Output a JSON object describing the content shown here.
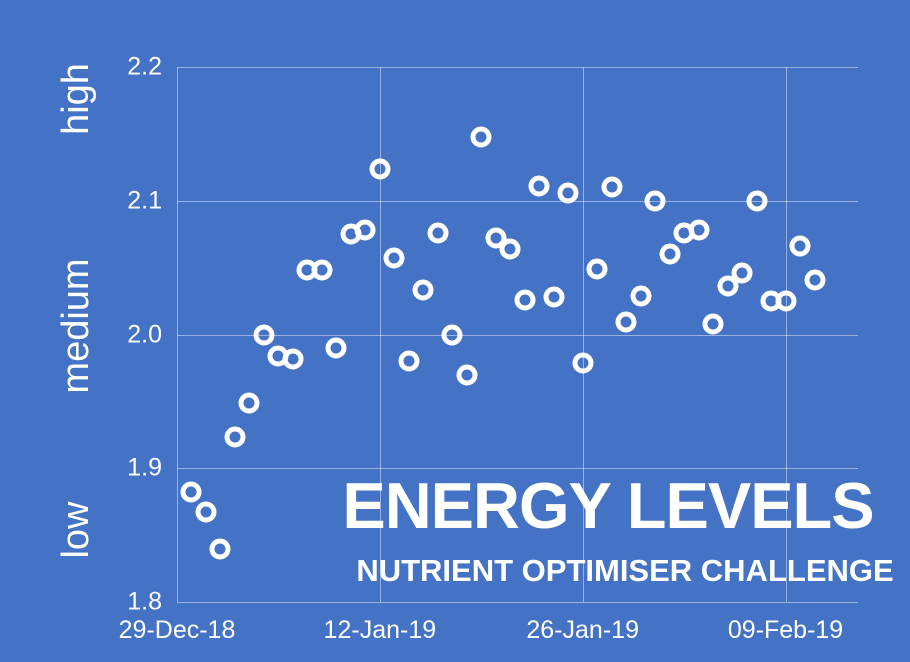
{
  "page": {
    "background_color": "#4472C4",
    "text_color": "#FFFFFF",
    "gridline_color": "rgba(255,255,255,0.45)"
  },
  "chart_data": {
    "type": "scatter",
    "title": "ENERGY LEVELS",
    "subtitle": "NUTRIENT OPTIMISER CHALLENGE",
    "legend_position": "none",
    "grid": true,
    "marker": {
      "icon": "ring-icon",
      "color": "#FFFFFF"
    },
    "ylim": [
      1.8,
      2.2
    ],
    "y_ticks": [
      {
        "label": "2.2",
        "value": 2.2
      },
      {
        "label": "2.1",
        "value": 2.1
      },
      {
        "label": "2.0",
        "value": 2.0
      },
      {
        "label": "1.9",
        "value": 1.9
      },
      {
        "label": "1.8",
        "value": 1.8
      }
    ],
    "y_band_labels": [
      {
        "label": "high",
        "value": 2.176
      },
      {
        "label": "medium",
        "value": 2.006
      },
      {
        "label": "low",
        "value": 1.854
      }
    ],
    "x_day_span": 47,
    "x_ticks": [
      {
        "label": "29-Dec-18",
        "day": 0
      },
      {
        "label": "12-Jan-19",
        "day": 14
      },
      {
        "label": "26-Jan-19",
        "day": 28
      },
      {
        "label": "09-Feb-19",
        "day": 42
      }
    ],
    "points": [
      {
        "date": "30-Dec-18",
        "day": 1,
        "value": 1.882
      },
      {
        "date": "31-Dec-18",
        "day": 2,
        "value": 1.867
      },
      {
        "date": "01-Jan-19",
        "day": 3,
        "value": 1.84
      },
      {
        "date": "02-Jan-19",
        "day": 4,
        "value": 1.923
      },
      {
        "date": "03-Jan-19",
        "day": 5,
        "value": 1.949
      },
      {
        "date": "04-Jan-19",
        "day": 6,
        "value": 2.0
      },
      {
        "date": "05-Jan-19",
        "day": 7,
        "value": 1.984
      },
      {
        "date": "06-Jan-19",
        "day": 8,
        "value": 1.982
      },
      {
        "date": "07-Jan-19",
        "day": 9,
        "value": 2.048
      },
      {
        "date": "08-Jan-19",
        "day": 10,
        "value": 2.048
      },
      {
        "date": "09-Jan-19",
        "day": 11,
        "value": 1.99
      },
      {
        "date": "10-Jan-19",
        "day": 12,
        "value": 2.075
      },
      {
        "date": "11-Jan-19",
        "day": 13,
        "value": 2.078
      },
      {
        "date": "12-Jan-19",
        "day": 14,
        "value": 2.124
      },
      {
        "date": "13-Jan-19",
        "day": 15,
        "value": 2.057
      },
      {
        "date": "14-Jan-19",
        "day": 16,
        "value": 1.98
      },
      {
        "date": "15-Jan-19",
        "day": 17,
        "value": 2.033
      },
      {
        "date": "16-Jan-19",
        "day": 18,
        "value": 2.076
      },
      {
        "date": "17-Jan-19",
        "day": 19,
        "value": 2.0
      },
      {
        "date": "18-Jan-19",
        "day": 20,
        "value": 1.97
      },
      {
        "date": "19-Jan-19",
        "day": 21,
        "value": 2.148
      },
      {
        "date": "20-Jan-19",
        "day": 22,
        "value": 2.072
      },
      {
        "date": "21-Jan-19",
        "day": 23,
        "value": 2.064
      },
      {
        "date": "22-Jan-19",
        "day": 24,
        "value": 2.026
      },
      {
        "date": "23-Jan-19",
        "day": 25,
        "value": 2.111
      },
      {
        "date": "24-Jan-19",
        "day": 26,
        "value": 2.028
      },
      {
        "date": "25-Jan-19",
        "day": 27,
        "value": 2.106
      },
      {
        "date": "26-Jan-19",
        "day": 28,
        "value": 1.979
      },
      {
        "date": "27-Jan-19",
        "day": 29,
        "value": 2.049
      },
      {
        "date": "28-Jan-19",
        "day": 30,
        "value": 2.11
      },
      {
        "date": "29-Jan-19",
        "day": 31,
        "value": 2.009
      },
      {
        "date": "30-Jan-19",
        "day": 32,
        "value": 2.029
      },
      {
        "date": "31-Jan-19",
        "day": 33,
        "value": 2.1
      },
      {
        "date": "01-Feb-19",
        "day": 34,
        "value": 2.06
      },
      {
        "date": "02-Feb-19",
        "day": 35,
        "value": 2.076
      },
      {
        "date": "03-Feb-19",
        "day": 36,
        "value": 2.078
      },
      {
        "date": "04-Feb-19",
        "day": 37,
        "value": 2.008
      },
      {
        "date": "05-Feb-19",
        "day": 38,
        "value": 2.036
      },
      {
        "date": "06-Feb-19",
        "day": 39,
        "value": 2.046
      },
      {
        "date": "07-Feb-19",
        "day": 40,
        "value": 2.1
      },
      {
        "date": "08-Feb-19",
        "day": 41,
        "value": 2.025
      },
      {
        "date": "09-Feb-19",
        "day": 42,
        "value": 2.025
      },
      {
        "date": "10-Feb-19",
        "day": 43,
        "value": 2.066
      },
      {
        "date": "11-Feb-19",
        "day": 44,
        "value": 2.041
      }
    ]
  }
}
